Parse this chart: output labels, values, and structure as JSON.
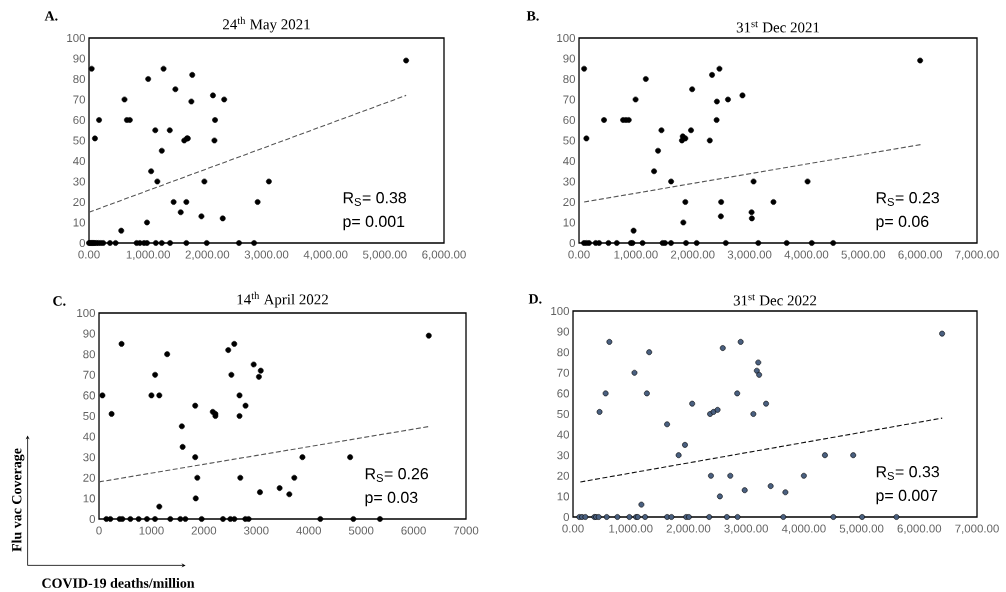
{
  "chart_data": [
    {
      "type": "scatter",
      "title": "24$^{th}$ May 2021",
      "annotations": [
        "A.",
        "R$_{S}$= 0.38",
        "p= 0.001"
      ],
      "xlim": [
        0,
        6000
      ],
      "xticks": [
        {
          "value": 0,
          "label": "0.00"
        },
        {
          "value": 1000,
          "label": "1,000.00"
        },
        {
          "value": 2000,
          "label": "2,000.00"
        },
        {
          "value": 3000,
          "label": "3,000.00"
        },
        {
          "value": 4000,
          "label": "4,000.00"
        },
        {
          "value": 5000,
          "label": "5,000.00"
        },
        {
          "value": 6000,
          "label": "6,000.00"
        }
      ],
      "ylim": [
        0,
        100
      ],
      "yticks": [
        0,
        10,
        20,
        30,
        40,
        50,
        60,
        70,
        80,
        90,
        100
      ],
      "series": [
        {
          "color": "#000000",
          "marker": "circle",
          "x": [
            45,
            100,
            170,
            600,
            640,
            690,
            545,
            1000,
            980,
            1050,
            1120,
            1155,
            1230,
            1260,
            1365,
            1460,
            1430,
            1550,
            1610,
            1655,
            1670,
            1645,
            1745,
            1730,
            1900,
            1950,
            2095,
            2130,
            2120,
            2285,
            2260,
            2850,
            3040,
            5360,
            0,
            20,
            40,
            60,
            80,
            100,
            130,
            160,
            200,
            240,
            355,
            450,
            805,
            860,
            930,
            980,
            1130,
            1230,
            1370,
            1645,
            1990,
            2535,
            2790
          ],
          "values": [
            85,
            51,
            60,
            70,
            60,
            60,
            6,
            80,
            10,
            35,
            55,
            30,
            45,
            85,
            55,
            75,
            20,
            15,
            50,
            51,
            51,
            20,
            82,
            69,
            13,
            30,
            72,
            60,
            50,
            70,
            12,
            20,
            30,
            89,
            0,
            0,
            0,
            0,
            0,
            0,
            0,
            0,
            0,
            0,
            0,
            0,
            0,
            0,
            0,
            0,
            0,
            0,
            0,
            0,
            0,
            0,
            0
          ]
        },
        {
          "type": "line",
          "color": "#555555",
          "line_style": "dashed",
          "marker": "none",
          "x": [
            0,
            5360
          ],
          "values": [
            15,
            72
          ]
        }
      ]
    },
    {
      "type": "scatter",
      "title": "31$^{st}$ Dec 2021",
      "annotations": [
        "B.",
        "R$_{S}$= 0.23",
        "p= 0.06"
      ],
      "xlim": [
        0,
        7000
      ],
      "xticks": [
        {
          "value": 0,
          "label": "0.00"
        },
        {
          "value": 1000,
          "label": "1,000.00"
        },
        {
          "value": 2000,
          "label": "2,000.00"
        },
        {
          "value": 3000,
          "label": "3,000.00"
        },
        {
          "value": 4000,
          "label": "4,000.00"
        },
        {
          "value": 5000,
          "label": "5,000.00"
        },
        {
          "value": 6000,
          "label": "6,000.00"
        },
        {
          "value": 7000,
          "label": "7,000.00"
        }
      ],
      "ylim": [
        0,
        100
      ],
      "yticks": [
        0,
        10,
        20,
        30,
        40,
        50,
        60,
        70,
        80,
        90,
        100
      ],
      "series": [
        {
          "color": "#000000",
          "marker": "circle",
          "x": [
            90,
            130,
            440,
            775,
            825,
            875,
            995,
            960,
            1175,
            1320,
            1390,
            1450,
            1620,
            1810,
            1825,
            1870,
            1835,
            1870,
            1970,
            1990,
            2300,
            2340,
            2425,
            2420,
            2470,
            2500,
            2495,
            2620,
            2875,
            3070,
            3035,
            3040,
            3420,
            4020,
            6000,
            88,
            130,
            176,
            294,
            353,
            518,
            665,
            912,
            941,
            1118,
            1470,
            1512,
            1618,
            1882,
            2070,
            2582,
            3153,
            3653,
            4094,
            4470
          ],
          "values": [
            85,
            51,
            60,
            60,
            60,
            60,
            70,
            6,
            80,
            35,
            45,
            55,
            30,
            50,
            52,
            51,
            10,
            20,
            55,
            75,
            50,
            82,
            69,
            60,
            85,
            20,
            13,
            70,
            72,
            30,
            15,
            12,
            20,
            30,
            89,
            0,
            0,
            0,
            0,
            0,
            0,
            0,
            0,
            0,
            0,
            0,
            0,
            0,
            0,
            0,
            0,
            0,
            0,
            0,
            0
          ]
        },
        {
          "type": "line",
          "color": "#555555",
          "line_style": "dashed",
          "marker": "none",
          "x": [
            90,
            6010
          ],
          "values": [
            20,
            48
          ]
        }
      ]
    },
    {
      "type": "scatter",
      "title": "14$^{th}$ April 2022",
      "annotations": [
        "C.",
        "R$_{S}$= 0.26",
        "p= 0.03"
      ],
      "xlabel": "COVID-19 deaths/million",
      "ylabel": "Flu vac Coverage",
      "xlim": [
        0,
        7000
      ],
      "xticks": [
        0,
        1000,
        2000,
        3000,
        4000,
        5000,
        6000,
        7000
      ],
      "ylim": [
        0,
        100
      ],
      "yticks": [
        0,
        10,
        20,
        30,
        40,
        50,
        60,
        70,
        80,
        90,
        100
      ],
      "series": [
        {
          "color": "#000000",
          "marker": "circle",
          "x": [
            65,
            240,
            430,
            1000,
            1070,
            1150,
            1150,
            1300,
            1580,
            1595,
            1835,
            1835,
            1845,
            1875,
            2170,
            2220,
            2220,
            2465,
            2580,
            2525,
            2680,
            2680,
            2795,
            2695,
            2950,
            3050,
            3085,
            3070,
            3445,
            3630,
            3725,
            3880,
            4790,
            6290,
            140,
            216,
            394,
            445,
            598,
            756,
            915,
            1068,
            1360,
            1551,
            1647,
            1958,
            2365,
            2505,
            2581,
            2791,
            2854,
            4221,
            4851,
            5359
          ],
          "values": [
            60,
            51,
            85,
            60,
            70,
            60,
            6,
            80,
            45,
            35,
            55,
            30,
            10,
            20,
            52,
            51,
            50,
            82,
            85,
            70,
            60,
            50,
            55,
            20,
            75,
            69,
            72,
            13,
            15,
            12,
            20,
            30,
            30,
            89,
            0,
            0,
            0,
            0,
            0,
            0,
            0,
            0,
            0,
            0,
            0,
            0,
            0,
            0,
            0,
            0,
            0,
            0,
            0,
            0
          ]
        },
        {
          "type": "line",
          "color": "#555555",
          "line_style": "dashed",
          "marker": "none",
          "x": [
            0,
            6320
          ],
          "values": [
            18,
            45
          ]
        }
      ]
    },
    {
      "type": "scatter",
      "title": "31$^{st}$ Dec 2022",
      "annotations": [
        "D.",
        "R$_{S}$= 0.33",
        "p= 0.007"
      ],
      "xlim": [
        0,
        7000
      ],
      "xticks": [
        {
          "value": 0,
          "label": "0.00"
        },
        {
          "value": 1000,
          "label": "1,000.00"
        },
        {
          "value": 2000,
          "label": "2,000.00"
        },
        {
          "value": 3000,
          "label": "3,000.00"
        },
        {
          "value": 4000,
          "label": "4,000.00"
        },
        {
          "value": 5000,
          "label": "5,000.00"
        },
        {
          "value": 6000,
          "label": "6,000.00"
        },
        {
          "value": 7000,
          "label": "7,000.00"
        }
      ],
      "ylim": [
        0,
        100
      ],
      "yticks": [
        0,
        10,
        20,
        30,
        40,
        50,
        60,
        70,
        80,
        90,
        100
      ],
      "series": [
        {
          "color": "#4a6080",
          "marker": "circle",
          "x": [
            460,
            565,
            630,
            1065,
            1185,
            1280,
            1320,
            1630,
            1830,
            1940,
            2065,
            2375,
            2435,
            2505,
            2390,
            2545,
            2595,
            2725,
            2845,
            2905,
            2975,
            3125,
            3185,
            3210,
            3225,
            3345,
            3425,
            3680,
            4000,
            4365,
            4855,
            6395,
            110,
            156,
            214,
            370,
            399,
            445,
            584,
            769,
            977,
            1093,
            1122,
            1249,
            1631,
            1706,
            1961,
            2007,
            2360,
            2666,
            2851,
            3644,
            4511,
            5009,
            5604
          ],
          "values": [
            51,
            60,
            85,
            70,
            6,
            60,
            80,
            45,
            30,
            35,
            55,
            50,
            51,
            52,
            20,
            10,
            82,
            20,
            60,
            85,
            13,
            50,
            71,
            75,
            69,
            55,
            15,
            12,
            20,
            30,
            30,
            89,
            0,
            0,
            0,
            0,
            0,
            0,
            0,
            0,
            0,
            0,
            0,
            0,
            0,
            0,
            0,
            0,
            0,
            0,
            0,
            0,
            0,
            0,
            0
          ]
        },
        {
          "type": "line",
          "color": "#111111",
          "line_style": "dashed",
          "marker": "none",
          "x": [
            127,
            6397
          ],
          "values": [
            17,
            48
          ]
        }
      ]
    }
  ]
}
